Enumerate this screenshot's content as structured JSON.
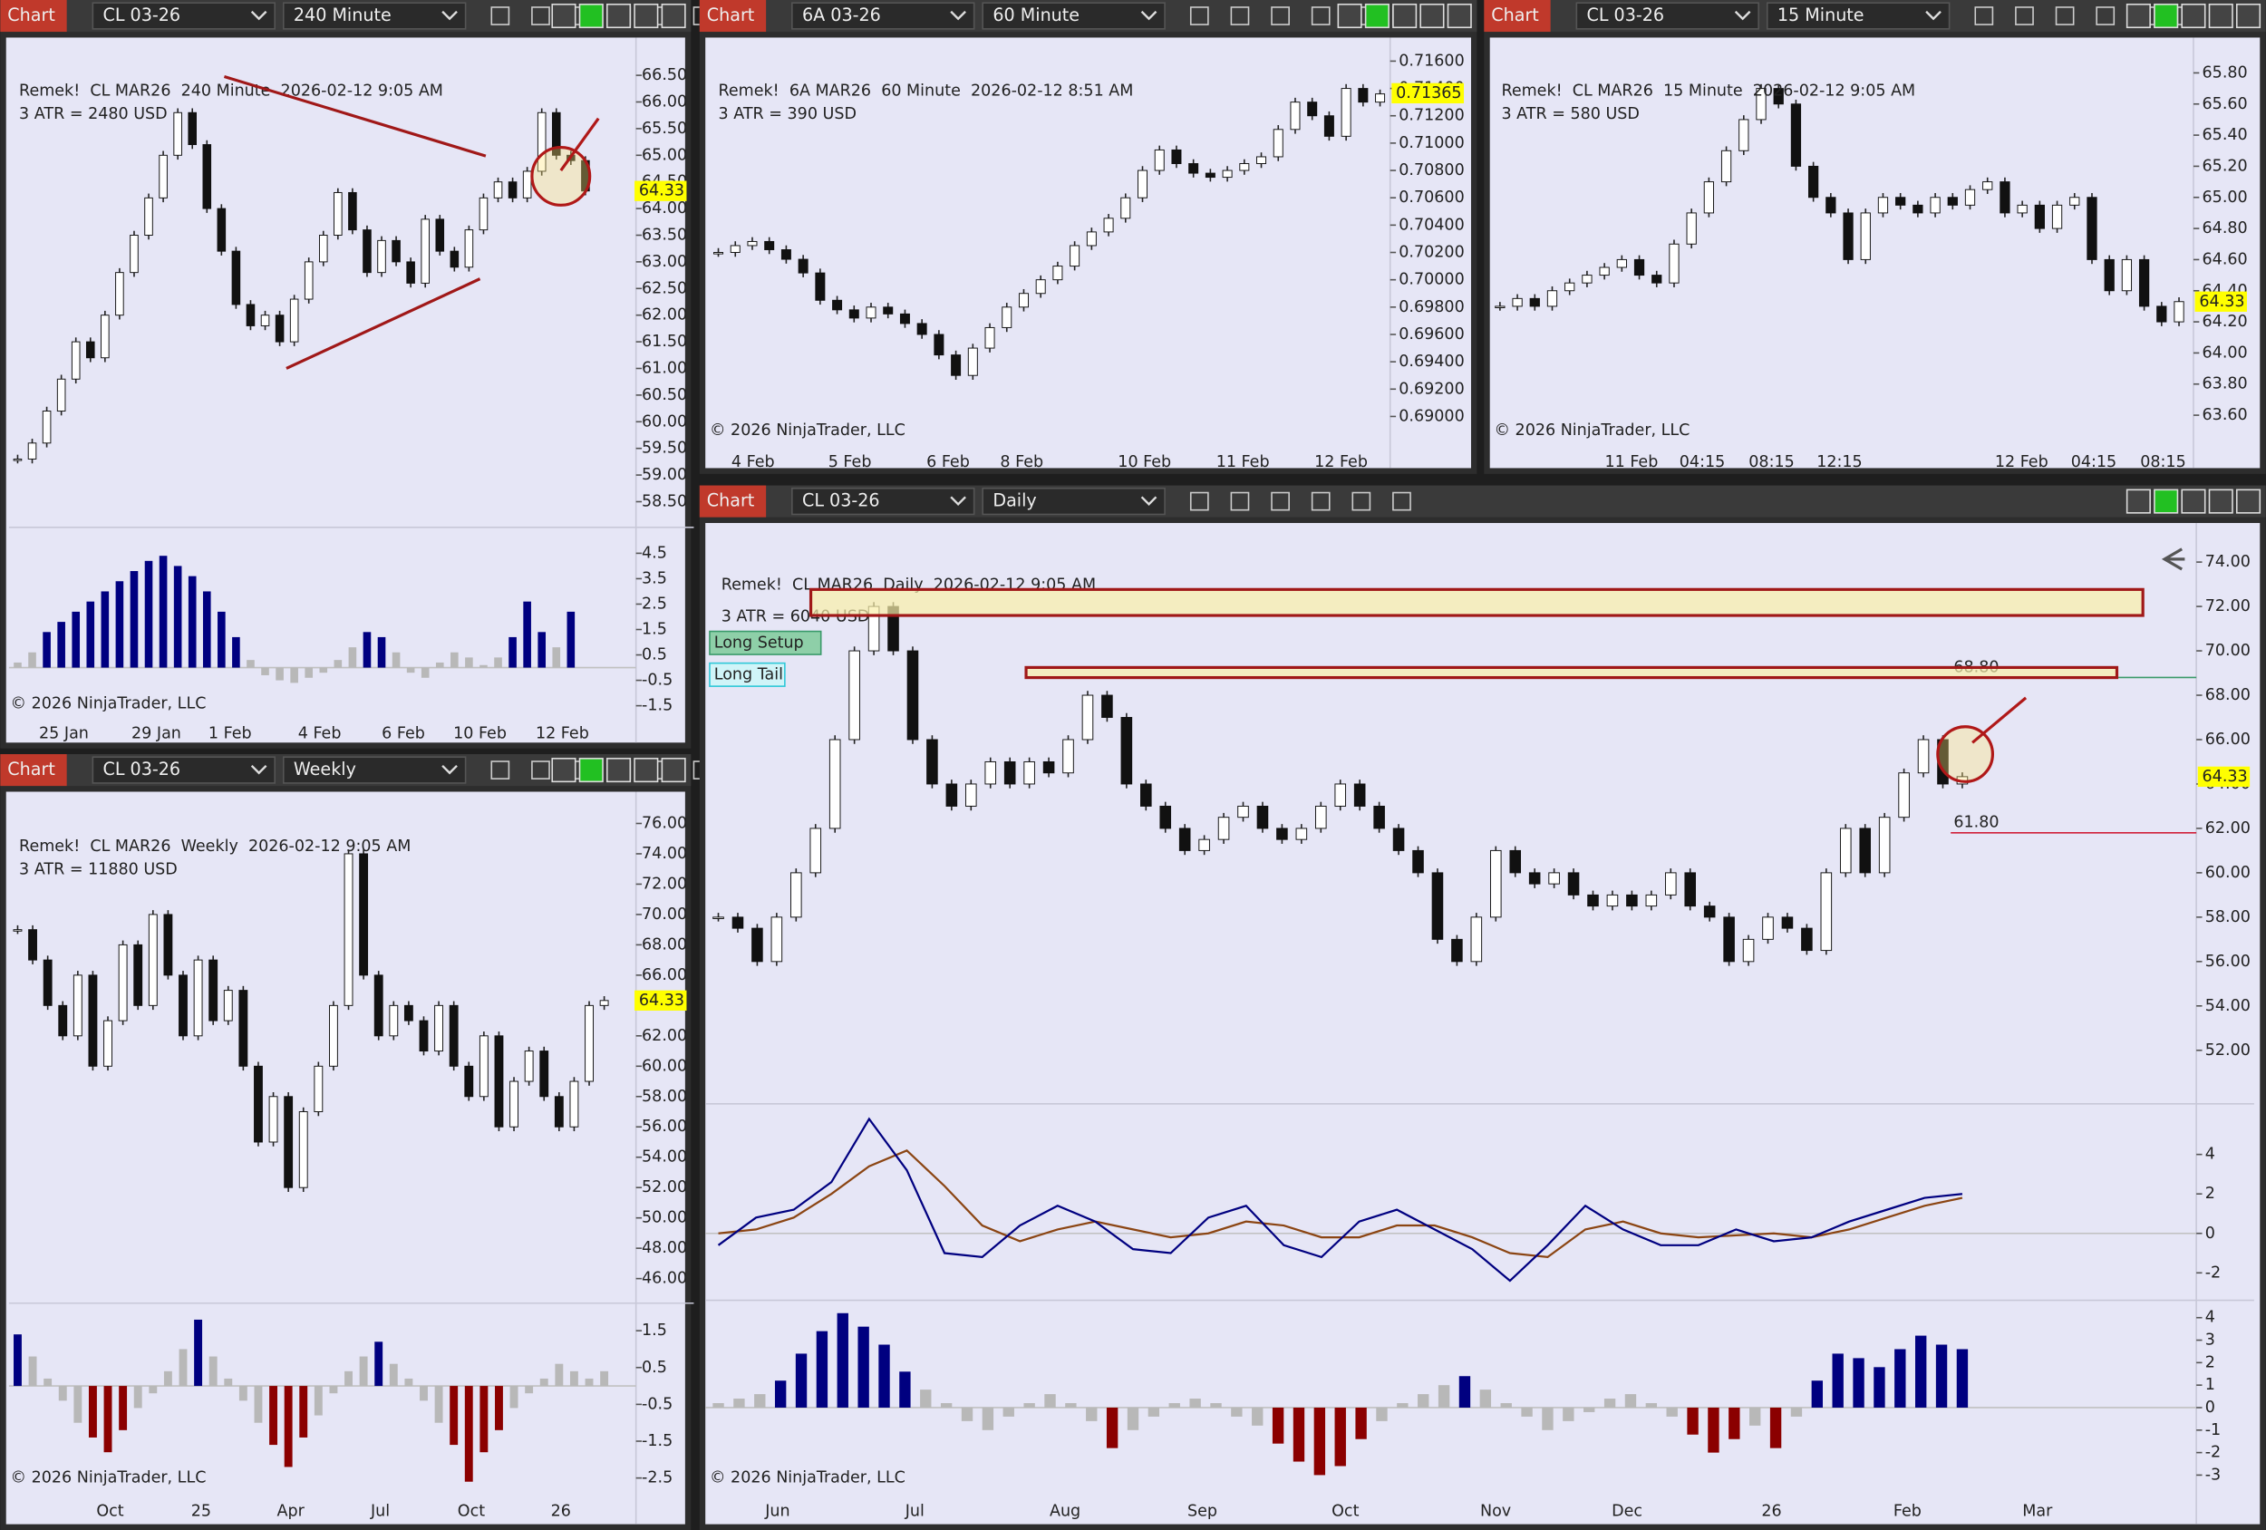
{
  "windows": [
    {
      "tab": "Chart",
      "instrument": "CL 03-26",
      "interval": "240 Minute",
      "title": "Remek!  CL MAR26  240 Minute  2026-02-12 9:05 AM",
      "atr": "3 ATR = 2480 USD",
      "copyright": "© 2026 NinjaTrader, LLC",
      "ylim": [
        58.1,
        67.1
      ],
      "yticks": [
        {
          "value": 66.5,
          "label": "66.50"
        },
        {
          "value": 66,
          "label": "66.00"
        },
        {
          "value": 65.5,
          "label": "65.50"
        },
        {
          "value": 65,
          "label": "65.00"
        },
        {
          "value": 64.5,
          "label": "64.50"
        },
        {
          "value": 64,
          "label": "64.00"
        },
        {
          "value": 63.5,
          "label": "63.50"
        },
        {
          "value": 63,
          "label": "63.00"
        },
        {
          "value": 62.5,
          "label": "62.50"
        },
        {
          "value": 62,
          "label": "62.00"
        },
        {
          "value": 61.5,
          "label": "61.50"
        },
        {
          "value": 61,
          "label": "61.00"
        },
        {
          "value": 60.5,
          "label": "60.50"
        },
        {
          "value": 60,
          "label": "60.00"
        },
        {
          "value": 59.5,
          "label": "59.50"
        },
        {
          "value": 59,
          "label": "59.00"
        },
        {
          "value": 58.5,
          "label": "58.50"
        }
      ],
      "last_price": 64.33,
      "xlabels": [
        "25 Jan",
        "29 Jan",
        "1 Feb",
        "4 Feb",
        "6 Feb",
        "10 Feb",
        "12 Feb"
      ],
      "closes": [
        59.3,
        59.6,
        60.2,
        60.8,
        61.5,
        61.2,
        62.0,
        62.8,
        63.5,
        64.2,
        65.0,
        65.8,
        65.2,
        64.0,
        63.2,
        62.2,
        61.8,
        62.0,
        61.5,
        62.3,
        63.0,
        63.5,
        64.3,
        63.6,
        62.8,
        63.4,
        63.0,
        62.6,
        63.8,
        63.2,
        62.9,
        63.6,
        64.2,
        64.5,
        64.2,
        64.7,
        65.8,
        65.0,
        64.9,
        64.33
      ],
      "ind_ylim": [
        -1.7,
        5.35
      ],
      "ind_yticks": [
        4.5,
        3.5,
        2.5,
        1.5,
        0.5,
        -0.5,
        -1.5
      ],
      "histogram": [
        0.2,
        0.6,
        1.4,
        1.8,
        2.2,
        2.6,
        3.0,
        3.4,
        3.8,
        4.2,
        4.4,
        4.0,
        3.6,
        3.0,
        2.2,
        1.2,
        0.3,
        -0.3,
        -0.5,
        -0.6,
        -0.4,
        -0.2,
        0.3,
        0.8,
        1.4,
        1.2,
        0.6,
        -0.2,
        -0.4,
        0.2,
        0.6,
        0.4,
        0.1,
        0.4,
        1.2,
        2.6,
        1.4,
        0.8,
        2.2,
        0.0
      ]
    },
    {
      "tab": "Chart",
      "instrument": "6A 03-26",
      "interval": "60 Minute",
      "title": "Remek!  6A MAR26  60 Minute  2026-02-12 8:51 AM",
      "atr": "3 ATR = 390 USD",
      "copyright": "© 2026 NinjaTrader, LLC",
      "ylim": [
        0.6877,
        0.7173
      ],
      "yticks": [
        {
          "value": 0.716,
          "label": "0.71600"
        },
        {
          "value": 0.714,
          "label": "0.71400"
        },
        {
          "value": 0.712,
          "label": "0.71200"
        },
        {
          "value": 0.71,
          "label": "0.71000"
        },
        {
          "value": 0.708,
          "label": "0.70800"
        },
        {
          "value": 0.706,
          "label": "0.70600"
        },
        {
          "value": 0.704,
          "label": "0.70400"
        },
        {
          "value": 0.702,
          "label": "0.70200"
        },
        {
          "value": 0.7,
          "label": "0.70000"
        },
        {
          "value": 0.698,
          "label": "0.69800"
        },
        {
          "value": 0.696,
          "label": "0.69600"
        },
        {
          "value": 0.694,
          "label": "0.69400"
        },
        {
          "value": 0.692,
          "label": "0.69200"
        },
        {
          "value": 0.69,
          "label": "0.69000"
        }
      ],
      "last_price": 0.71365,
      "xlabels": [
        "4 Feb",
        "5 Feb",
        "6 Feb",
        "8 Feb",
        "10 Feb",
        "11 Feb",
        "12 Feb"
      ],
      "closes": [
        0.702,
        0.7025,
        0.7028,
        0.7022,
        0.7015,
        0.7005,
        0.6985,
        0.6978,
        0.6972,
        0.698,
        0.6975,
        0.6968,
        0.696,
        0.6945,
        0.693,
        0.695,
        0.6965,
        0.698,
        0.699,
        0.7,
        0.701,
        0.7025,
        0.7035,
        0.7045,
        0.706,
        0.708,
        0.7095,
        0.7085,
        0.7078,
        0.7075,
        0.708,
        0.7085,
        0.709,
        0.711,
        0.713,
        0.712,
        0.7105,
        0.714,
        0.713,
        0.7136
      ]
    },
    {
      "tab": "Chart",
      "instrument": "CL 03-26",
      "interval": "15 Minute",
      "title": "Remek!  CL MAR26  15 Minute  2026-02-12 9:05 AM",
      "atr": "3 ATR = 580 USD",
      "copyright": "© 2026 NinjaTrader, LLC",
      "ylim": [
        63.39,
        65.99
      ],
      "yticks": [
        {
          "value": 65.8,
          "label": "65.80"
        },
        {
          "value": 65.6,
          "label": "65.60"
        },
        {
          "value": 65.4,
          "label": "65.40"
        },
        {
          "value": 65.2,
          "label": "65.20"
        },
        {
          "value": 65,
          "label": "65.00"
        },
        {
          "value": 64.8,
          "label": "64.80"
        },
        {
          "value": 64.6,
          "label": "64.60"
        },
        {
          "value": 64.4,
          "label": "64.40"
        },
        {
          "value": 64.2,
          "label": "64.20"
        },
        {
          "value": 64,
          "label": "64.00"
        },
        {
          "value": 63.8,
          "label": "63.80"
        },
        {
          "value": 63.6,
          "label": "63.60"
        }
      ],
      "last_price": 64.33,
      "xlabels": [
        "11 Feb",
        "04:15",
        "08:15",
        "12:15",
        "12 Feb",
        "04:15",
        "08:15"
      ],
      "closes": [
        64.3,
        64.35,
        64.3,
        64.4,
        64.45,
        64.5,
        64.55,
        64.6,
        64.5,
        64.45,
        64.7,
        64.9,
        65.1,
        65.3,
        65.5,
        65.7,
        65.6,
        65.2,
        65.0,
        64.9,
        64.6,
        64.9,
        65.0,
        64.95,
        64.9,
        65.0,
        64.95,
        65.05,
        65.1,
        64.9,
        64.95,
        64.8,
        64.95,
        65.0,
        64.6,
        64.4,
        64.6,
        64.3,
        64.2,
        64.33
      ]
    },
    {
      "tab": "Chart",
      "instrument": "CL 03-26",
      "interval": "Weekly",
      "title": "Remek!  CL MAR26  Weekly  2026-02-12 9:05 AM",
      "atr": "3 ATR = 11880 USD",
      "copyright": "© 2026 NinjaTrader, LLC",
      "ylim": [
        44.57,
        77.71
      ],
      "yticks": [
        {
          "value": 76,
          "label": "76.00"
        },
        {
          "value": 74,
          "label": "74.00"
        },
        {
          "value": 72,
          "label": "72.00"
        },
        {
          "value": 70,
          "label": "70.00"
        },
        {
          "value": 68,
          "label": "68.00"
        },
        {
          "value": 66,
          "label": "66.00"
        },
        {
          "value": 64,
          "label": "64.00"
        },
        {
          "value": 62,
          "label": "62.00"
        },
        {
          "value": 60,
          "label": "60.00"
        },
        {
          "value": 58,
          "label": "58.00"
        },
        {
          "value": 56,
          "label": "56.00"
        },
        {
          "value": 54,
          "label": "54.00"
        },
        {
          "value": 52,
          "label": "52.00"
        },
        {
          "value": 50,
          "label": "50.00"
        },
        {
          "value": 48,
          "label": "48.00"
        },
        {
          "value": 46,
          "label": "46.00"
        }
      ],
      "last_price": 64.33,
      "xlabels": [
        "Oct",
        "25",
        "Apr",
        "Jul",
        "Oct",
        "26"
      ],
      "closes": [
        69,
        67,
        64,
        62,
        66,
        60,
        63,
        68,
        64,
        70,
        66,
        62,
        67,
        63,
        65,
        60,
        55,
        58,
        52,
        57,
        60,
        64,
        74,
        66,
        62,
        64,
        63,
        61,
        64,
        60,
        58,
        62,
        56,
        59,
        61,
        58,
        56,
        59,
        64,
        64.33
      ],
      "ind_ylim": [
        -2.97,
        2.13
      ],
      "ind_yticks": [
        1.5,
        0.5,
        -0.5,
        -1.5,
        -2.5
      ],
      "histogram": [
        1.4,
        0.8,
        0.2,
        -0.4,
        -1.0,
        -1.4,
        -1.8,
        -1.2,
        -0.6,
        -0.2,
        0.4,
        1.0,
        1.8,
        0.8,
        0.2,
        -0.4,
        -1.0,
        -1.6,
        -2.2,
        -1.4,
        -0.8,
        -0.2,
        0.4,
        0.8,
        1.2,
        0.6,
        0.2,
        -0.4,
        -1.0,
        -1.6,
        -2.6,
        -1.8,
        -1.2,
        -0.6,
        -0.2,
        0.2,
        0.6,
        0.4,
        0.2,
        0.4
      ]
    },
    {
      "tab": "Chart",
      "instrument": "CL 03-26",
      "interval": "Daily",
      "title": "Remek!  CL MAR26  Daily  2026-02-12 9:05 AM",
      "atr": "3 ATR = 6040 USD",
      "copyright": "© 2026 NinjaTrader, LLC",
      "ylim": [
        49.72,
        75.5
      ],
      "yticks": [
        {
          "value": 74,
          "label": "74.00"
        },
        {
          "value": 72,
          "label": "72.00"
        },
        {
          "value": 70,
          "label": "70.00"
        },
        {
          "value": 68,
          "label": "68.00"
        },
        {
          "value": 66,
          "label": "66.00"
        },
        {
          "value": 64,
          "label": "64.00"
        },
        {
          "value": 62,
          "label": "62.00"
        },
        {
          "value": 60,
          "label": "60.00"
        },
        {
          "value": 58,
          "label": "58.00"
        },
        {
          "value": 56,
          "label": "56.00"
        },
        {
          "value": 54,
          "label": "54.00"
        },
        {
          "value": 52,
          "label": "52.00"
        }
      ],
      "last_price": 64.33,
      "xlabels": [
        "Jun",
        "Jul",
        "Aug",
        "Sep",
        "Oct",
        "Nov",
        "Dec",
        "26",
        "Feb",
        "Mar"
      ],
      "closes": [
        58,
        57.5,
        56,
        58,
        60,
        62,
        66,
        70,
        72,
        70,
        66,
        64,
        63,
        64,
        65,
        64,
        65,
        64.5,
        66,
        68,
        67,
        64,
        63,
        62,
        61,
        61.5,
        62.5,
        63,
        62,
        61.5,
        62,
        63,
        64,
        63,
        62,
        61,
        60,
        57,
        56,
        58,
        61,
        60,
        59.5,
        60,
        59,
        58.5,
        59,
        58.5,
        59,
        60,
        58.5,
        58,
        56,
        57,
        58,
        57.5,
        56.5,
        60,
        62,
        60,
        62.5,
        64.5,
        66,
        64,
        64.33
      ],
      "buttons": [
        "Long Setup",
        "Long Tail"
      ],
      "levels": [
        {
          "value": 68.8,
          "label": "68.80",
          "color": "#3a9a6a"
        },
        {
          "value": 61.8,
          "label": "61.80",
          "color": "#d0203a"
        }
      ],
      "osc_ylim": [
        -3.39,
        6.42
      ],
      "osc_yticks": [
        4,
        2,
        0,
        -2
      ],
      "osc_fast": [
        -0.6,
        0.8,
        1.2,
        2.6,
        5.8,
        3.2,
        -1.0,
        -1.2,
        0.4,
        1.4,
        0.6,
        -0.8,
        -1.0,
        0.8,
        1.4,
        -0.6,
        -1.2,
        0.6,
        1.2,
        0.2,
        -0.8,
        -2.4,
        -0.6,
        1.4,
        0.2,
        -0.6,
        -0.6,
        0.2,
        -0.4,
        -0.2,
        0.6,
        1.2,
        1.8,
        2.0
      ],
      "osc_slow": [
        0,
        0.2,
        0.8,
        2.0,
        3.4,
        4.2,
        2.4,
        0.4,
        -0.4,
        0.2,
        0.6,
        0.2,
        -0.2,
        0,
        0.6,
        0.4,
        -0.2,
        -0.2,
        0.4,
        0.4,
        -0.2,
        -1.0,
        -1.2,
        0.2,
        0.6,
        0,
        -0.2,
        -0.1,
        0,
        -0.2,
        0.2,
        0.8,
        1.4,
        1.8
      ],
      "ind_ylim": [
        -3.9,
        4.58
      ],
      "ind_yticks": [
        4,
        3,
        2,
        1,
        0,
        -1,
        -2,
        -3
      ],
      "histogram": [
        0.2,
        0.4,
        0.6,
        1.2,
        2.4,
        3.4,
        4.2,
        3.6,
        2.8,
        1.6,
        0.8,
        0.2,
        -0.6,
        -1.0,
        -0.4,
        0.2,
        0.6,
        0.2,
        -0.6,
        -1.8,
        -1.0,
        -0.4,
        0.2,
        0.4,
        0.2,
        -0.4,
        -0.8,
        -1.6,
        -2.4,
        -3.0,
        -2.6,
        -1.4,
        -0.6,
        0.2,
        0.6,
        1.0,
        1.4,
        0.8,
        0.2,
        -0.4,
        -1.0,
        -0.6,
        -0.2,
        0.4,
        0.6,
        0.2,
        -0.4,
        -1.2,
        -2.0,
        -1.4,
        -0.8,
        -1.8,
        -0.4,
        1.2,
        2.4,
        2.2,
        1.8,
        2.6,
        3.2,
        2.8,
        2.6
      ]
    }
  ]
}
